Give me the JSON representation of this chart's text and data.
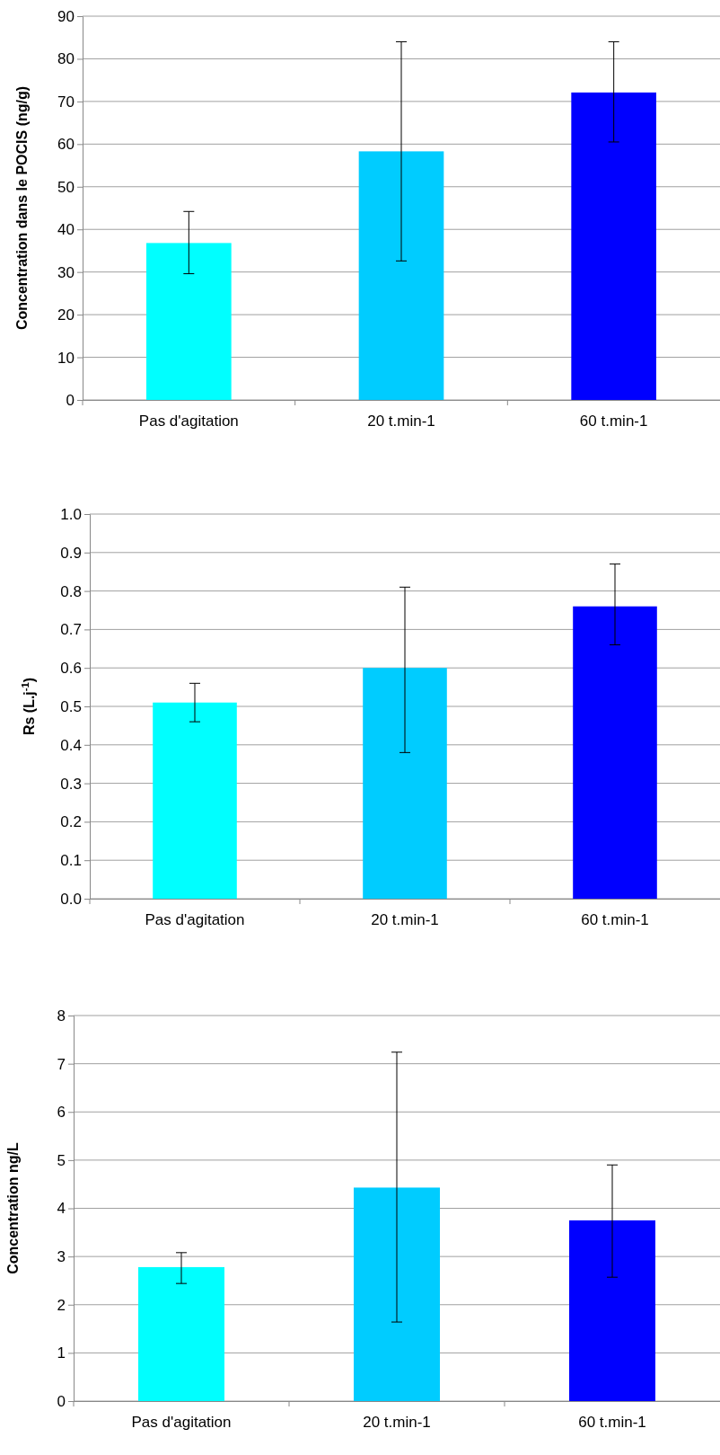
{
  "chart_data": [
    {
      "type": "bar",
      "ylabel": "Concentration dans le POCIS (ng/g)",
      "categories": [
        "Pas d'agitation",
        "20 t.min-1",
        "60 t.min-1"
      ],
      "values": [
        36.8,
        58.3,
        72.1
      ],
      "colors": [
        "#00ffff",
        "#00ccff",
        "#0000ff"
      ],
      "errors": [
        [
          29.6,
          44.2
        ],
        [
          32.6,
          84
        ],
        [
          60.5,
          84
        ]
      ],
      "ylim": [
        0,
        90
      ],
      "yticks": [
        0,
        10,
        20,
        30,
        40,
        50,
        60,
        70,
        80,
        90
      ],
      "grid": "y"
    },
    {
      "type": "bar",
      "ylabel": "Rs (L.j$^{-1}$)",
      "categories": [
        "Pas d'agitation",
        "20 t.min-1",
        "60 t.min-1"
      ],
      "values": [
        0.51,
        0.6,
        0.76
      ],
      "colors": [
        "#00ffff",
        "#00ccff",
        "#0000ff"
      ],
      "errors": [
        [
          0.46,
          0.56
        ],
        [
          0.38,
          0.81
        ],
        [
          0.66,
          0.87
        ]
      ],
      "ylim": [
        0,
        1
      ],
      "yticks": [
        {
          "value": 0,
          "label": "0.0"
        },
        {
          "value": 0.1,
          "label": "0.1"
        },
        {
          "value": 0.2,
          "label": "0.2"
        },
        {
          "value": 0.3,
          "label": "0.3"
        },
        {
          "value": 0.4,
          "label": "0.4"
        },
        {
          "value": 0.5,
          "label": "0.5"
        },
        {
          "value": 0.6,
          "label": "0.6"
        },
        {
          "value": 0.7,
          "label": "0.7"
        },
        {
          "value": 0.8,
          "label": "0.8"
        },
        {
          "value": 0.9,
          "label": "0.9"
        },
        {
          "value": 1,
          "label": "1.0"
        }
      ],
      "grid": "y"
    },
    {
      "type": "bar",
      "ylabel": "Concentration ng/L",
      "categories": [
        "Pas d'agitation",
        "20 t.min-1",
        "60 t.min-1"
      ],
      "values": [
        2.78,
        4.43,
        3.75
      ],
      "colors": [
        "#00ffff",
        "#00ccff",
        "#0000ff"
      ],
      "errors": [
        [
          2.44,
          3.08
        ],
        [
          1.64,
          7.24
        ],
        [
          2.57,
          4.9
        ]
      ],
      "ylim": [
        0,
        8
      ],
      "yticks": [
        0,
        1,
        2,
        3,
        4,
        5,
        6,
        7,
        8
      ],
      "grid": "y"
    }
  ]
}
